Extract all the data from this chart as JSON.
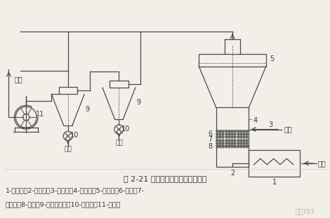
{
  "title": "图 2-21 载体喷雾流化干燥器流程图",
  "caption_line1": "1-加热器；2-进气室；3-进料管；4-干燥室；5-沉降室；6-载体；7-",
  "caption_line2": "检修孔；8-孔板；9-旋风分离器；10-出料阀；11-引风机",
  "watermark": "化工707",
  "bg_color": "#f2efe9",
  "line_color": "#4a4a4a",
  "text_color": "#3a3a3a",
  "fig_width": 4.7,
  "fig_height": 3.11,
  "dpi": 100
}
